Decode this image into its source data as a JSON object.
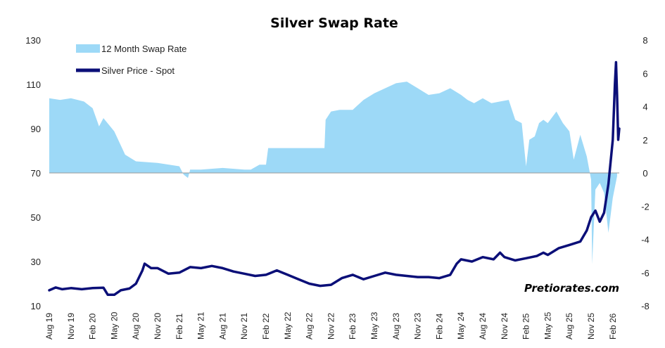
{
  "chart_data": {
    "type": "area+line",
    "title": "Silver Swap Rate",
    "watermark": "Pretiorates.com",
    "colors": {
      "swap": "#9dd9f7",
      "price": "#0b0f78"
    },
    "left_axis": {
      "min": 10,
      "max": 130,
      "ticks": [
        10,
        30,
        50,
        70,
        90,
        110,
        130
      ]
    },
    "right_axis": {
      "min": -8,
      "max": 8,
      "ticks": [
        -8,
        -6,
        -4,
        -2,
        0,
        2,
        4,
        6,
        8
      ]
    },
    "x_labels": [
      "Aug 19",
      "Nov 19",
      "Feb 20",
      "May 20",
      "Aug 20",
      "Nov 20",
      "Feb 21",
      "May 21",
      "Aug 21",
      "Nov 21",
      "Feb 22",
      "May 22",
      "Aug 22",
      "Nov 22",
      "Feb 23",
      "May 23",
      "Aug 23",
      "Nov 23",
      "Feb 24",
      "May 24",
      "Aug 24",
      "Nov 24",
      "Feb 25",
      "May 25",
      "Aug 25",
      "Nov 25",
      "Feb 26"
    ],
    "x_range": [
      0,
      26.3
    ],
    "series": [
      {
        "name": "12 Month Swap Rate",
        "axis": "right",
        "type": "area",
        "points": [
          [
            0,
            4.5
          ],
          [
            0.5,
            4.4
          ],
          [
            1,
            4.5
          ],
          [
            1.6,
            4.3
          ],
          [
            2,
            3.9
          ],
          [
            2.3,
            2.8
          ],
          [
            2.5,
            3.3
          ],
          [
            3,
            2.5
          ],
          [
            3.5,
            1.1
          ],
          [
            4,
            0.7
          ],
          [
            5,
            0.6
          ],
          [
            6,
            0.4
          ],
          [
            6.2,
            -0.1
          ],
          [
            6.4,
            -0.3
          ],
          [
            6.5,
            0.2
          ],
          [
            7,
            0.2
          ],
          [
            8,
            0.3
          ],
          [
            9,
            0.2
          ],
          [
            9.3,
            0.2
          ],
          [
            9.7,
            0.5
          ],
          [
            10,
            0.5
          ],
          [
            10.1,
            1.5
          ],
          [
            10.5,
            1.5
          ],
          [
            12,
            1.5
          ],
          [
            12.7,
            1.5
          ],
          [
            12.75,
            3.2
          ],
          [
            13,
            3.7
          ],
          [
            13.4,
            3.8
          ],
          [
            14,
            3.8
          ],
          [
            14.5,
            4.4
          ],
          [
            15,
            4.8
          ],
          [
            16,
            5.4
          ],
          [
            16.5,
            5.5
          ],
          [
            17,
            5.1
          ],
          [
            17.5,
            4.7
          ],
          [
            18,
            4.8
          ],
          [
            18.5,
            5.1
          ],
          [
            19,
            4.7
          ],
          [
            19.3,
            4.4
          ],
          [
            19.6,
            4.2
          ],
          [
            20,
            4.5
          ],
          [
            20.4,
            4.2
          ],
          [
            20.8,
            4.3
          ],
          [
            21.2,
            4.4
          ],
          [
            21.5,
            3.2
          ],
          [
            21.8,
            3.0
          ],
          [
            22,
            0.4
          ],
          [
            22.15,
            2.0
          ],
          [
            22.4,
            2.2
          ],
          [
            22.6,
            3.0
          ],
          [
            22.8,
            3.2
          ],
          [
            23,
            3.0
          ],
          [
            23.4,
            3.7
          ],
          [
            23.7,
            3.0
          ],
          [
            24,
            2.5
          ],
          [
            24.2,
            0.8
          ],
          [
            24.5,
            2.3
          ],
          [
            24.8,
            1.0
          ],
          [
            25,
            -0.4
          ],
          [
            25.05,
            -5.5
          ],
          [
            25.2,
            -1.0
          ],
          [
            25.4,
            -0.6
          ],
          [
            25.6,
            -1.2
          ],
          [
            25.8,
            -3.6
          ],
          [
            26,
            -1.5
          ],
          [
            26.2,
            -0.2
          ]
        ]
      },
      {
        "name": "Silver Price - Spot",
        "axis": "left",
        "type": "line",
        "points": [
          [
            0,
            17.0
          ],
          [
            0.3,
            18.3
          ],
          [
            0.6,
            17.5
          ],
          [
            1,
            18.0
          ],
          [
            1.5,
            17.5
          ],
          [
            2,
            18.0
          ],
          [
            2.5,
            18.2
          ],
          [
            2.7,
            15.0
          ],
          [
            3,
            15.0
          ],
          [
            3.3,
            17.0
          ],
          [
            3.7,
            17.8
          ],
          [
            4,
            20.0
          ],
          [
            4.3,
            26.0
          ],
          [
            4.4,
            29.0
          ],
          [
            4.7,
            27.0
          ],
          [
            5,
            27.0
          ],
          [
            5.5,
            24.5
          ],
          [
            6,
            25.0
          ],
          [
            6.5,
            27.5
          ],
          [
            7,
            27.0
          ],
          [
            7.5,
            28.0
          ],
          [
            8,
            27.0
          ],
          [
            8.5,
            25.5
          ],
          [
            9,
            24.5
          ],
          [
            9.5,
            23.5
          ],
          [
            10,
            24.0
          ],
          [
            10.5,
            26.0
          ],
          [
            11,
            24.0
          ],
          [
            11.5,
            22.0
          ],
          [
            12,
            20.0
          ],
          [
            12.5,
            19.0
          ],
          [
            13,
            19.5
          ],
          [
            13.5,
            22.5
          ],
          [
            14,
            24.0
          ],
          [
            14.5,
            22.0
          ],
          [
            15,
            23.5
          ],
          [
            15.5,
            25.0
          ],
          [
            16,
            24.0
          ],
          [
            16.5,
            23.5
          ],
          [
            17,
            23.0
          ],
          [
            17.5,
            23.0
          ],
          [
            18,
            22.5
          ],
          [
            18.5,
            24.0
          ],
          [
            18.8,
            29.0
          ],
          [
            19,
            31.0
          ],
          [
            19.5,
            30.0
          ],
          [
            20,
            32.0
          ],
          [
            20.5,
            31.0
          ],
          [
            20.8,
            34.0
          ],
          [
            21,
            32.0
          ],
          [
            21.5,
            30.5
          ],
          [
            22,
            31.5
          ],
          [
            22.5,
            32.5
          ],
          [
            22.8,
            34.0
          ],
          [
            23,
            33.0
          ],
          [
            23.5,
            36.0
          ],
          [
            24,
            37.5
          ],
          [
            24.5,
            39.0
          ],
          [
            24.8,
            44.0
          ],
          [
            25,
            50.0
          ],
          [
            25.2,
            53.0
          ],
          [
            25.4,
            48.0
          ],
          [
            25.6,
            52.0
          ],
          [
            25.8,
            65.0
          ],
          [
            26,
            85.0
          ],
          [
            26.1,
            110.0
          ],
          [
            26.15,
            120.0
          ],
          [
            26.2,
            105.0
          ],
          [
            26.25,
            85.0
          ],
          [
            26.3,
            90.0
          ]
        ]
      }
    ],
    "legend": {
      "placement": "top-left",
      "entries": [
        "12 Month Swap Rate",
        "Silver Price - Spot"
      ]
    }
  }
}
